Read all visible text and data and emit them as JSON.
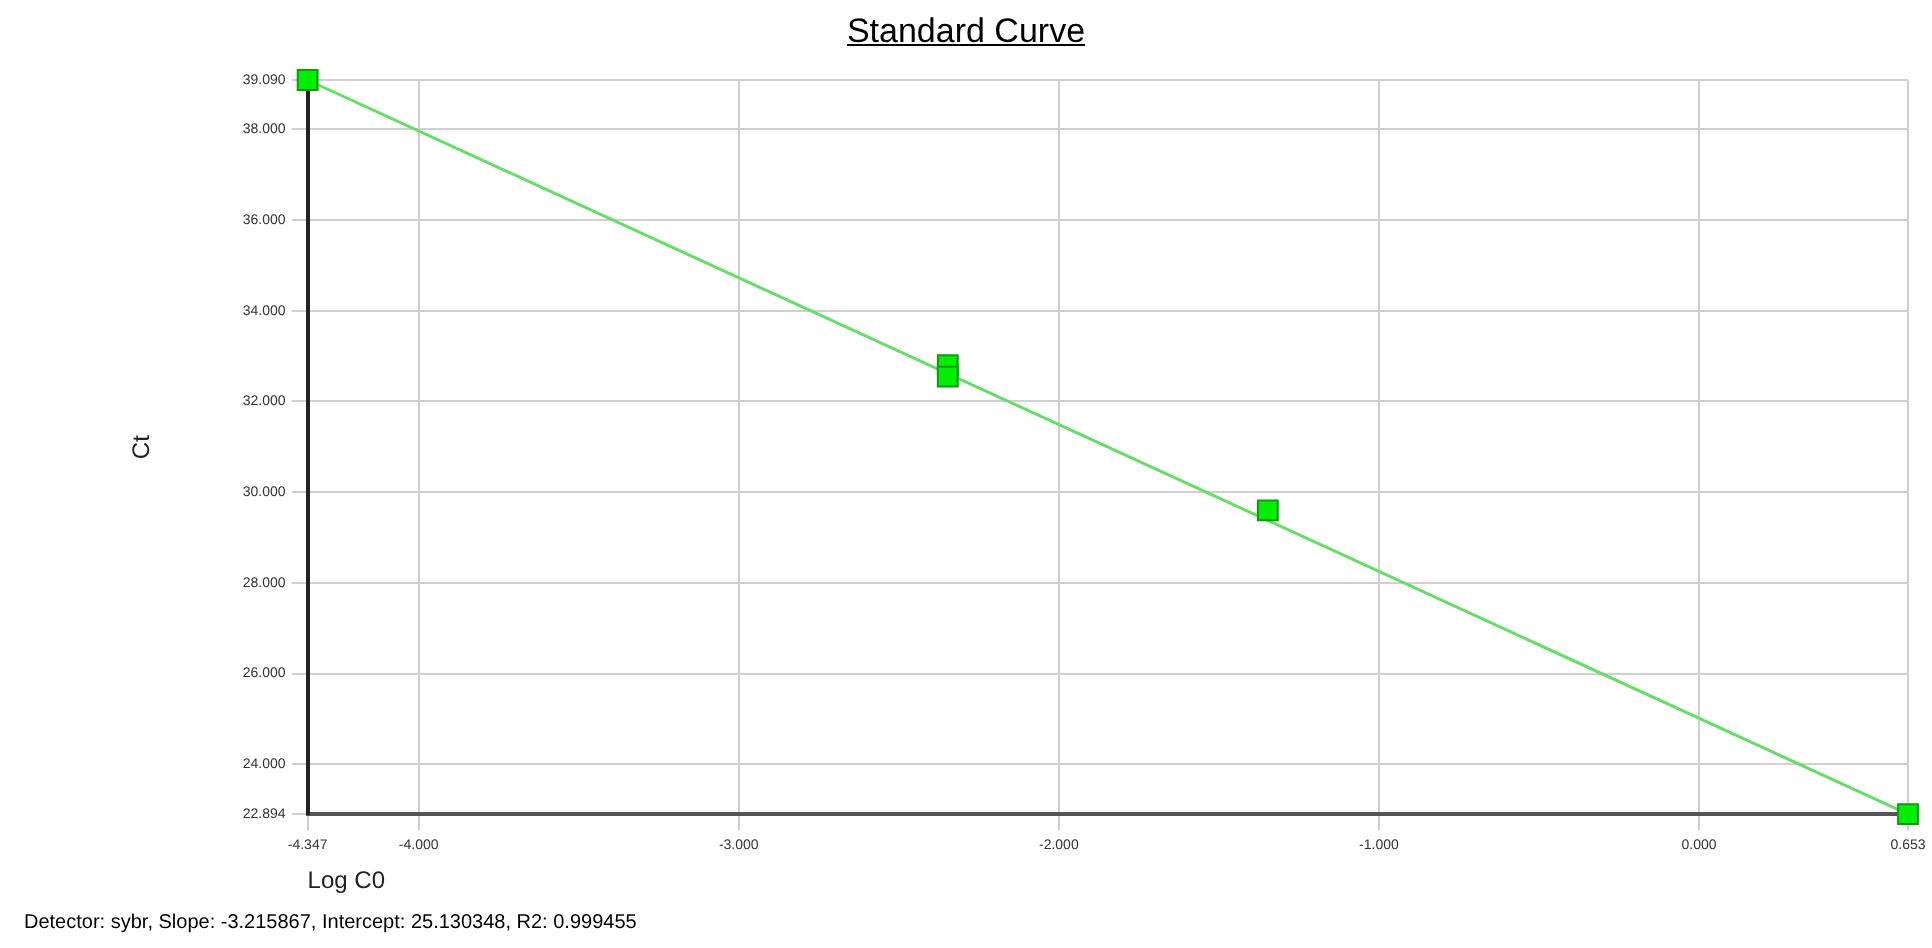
{
  "chart_data": {
    "type": "scatter",
    "title": "Standard Curve",
    "xlabel": "Log C0",
    "ylabel": "Ct",
    "annotations": [
      "Detector: sybr, Slope:  -3.215867, Intercept:  25.130348, R2:  0.999455"
    ],
    "series": [
      {
        "color": "#00ee00",
        "marker": "square",
        "x": [
          -4.347,
          -2.347,
          -2.347,
          -1.347,
          0.653
        ],
        "values": [
          39.09,
          32.8,
          32.55,
          29.6,
          22.9
        ]
      },
      {
        "type": "line",
        "color": "#66dd66",
        "marker": "none",
        "x": [
          -4.347,
          0.653
        ],
        "values": [
          39.09,
          22.9
        ]
      }
    ],
    "xlim": [
      -4.347,
      0.653
    ],
    "xticks": [
      {
        "value": -4.347,
        "label": "-4.347"
      },
      {
        "value": -4,
        "label": "-4.000"
      },
      {
        "value": -3,
        "label": "-3.000"
      },
      {
        "value": -2,
        "label": "-2.000"
      },
      {
        "value": -1,
        "label": "-1.000"
      },
      {
        "value": 0,
        "label": "0.000"
      },
      {
        "value": 0.653,
        "label": "0.653"
      }
    ],
    "ylim": [
      22.894,
      39.09
    ],
    "yticks": [
      {
        "value": 22.894,
        "label": "22.894"
      },
      {
        "value": 24,
        "label": "24.000"
      },
      {
        "value": 26,
        "label": "26.000"
      },
      {
        "value": 28,
        "label": "28.000"
      },
      {
        "value": 30,
        "label": "30.000"
      },
      {
        "value": 32,
        "label": "32.000"
      },
      {
        "value": 34,
        "label": "34.000"
      },
      {
        "value": 36,
        "label": "36.000"
      },
      {
        "value": 38,
        "label": "38.000"
      },
      {
        "value": 39.09,
        "label": "39.090"
      }
    ],
    "grid": true,
    "line_style": "solid"
  }
}
